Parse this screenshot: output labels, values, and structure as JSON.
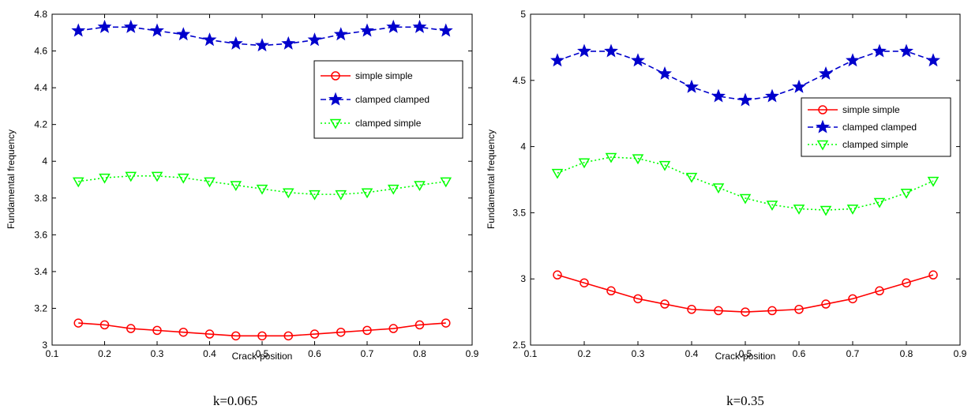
{
  "chart_data": [
    {
      "type": "line",
      "caption": "k=0.065",
      "xlabel": "Crack-position",
      "ylabel": "Fundamental frequency",
      "xlim": [
        0.1,
        0.9
      ],
      "ylim": [
        3,
        4.8
      ],
      "xticks": [
        "0.1",
        "0.2",
        "0.3",
        "0.4",
        "0.5",
        "0.6",
        "0.7",
        "0.8",
        "0.9"
      ],
      "yticks": [
        "3",
        "3.2",
        "3.4",
        "3.6",
        "3.8",
        "4",
        "4.2",
        "4.4",
        "4.6",
        "4.8"
      ],
      "grid": false,
      "legend_position": "right-upper",
      "x": [
        0.15,
        0.2,
        0.25,
        0.3,
        0.35,
        0.4,
        0.45,
        0.5,
        0.55,
        0.6,
        0.65,
        0.7,
        0.75,
        0.8,
        0.85
      ],
      "series": [
        {
          "name": "simple simple",
          "color": "#ff0000",
          "marker": "circle",
          "dash": "solid",
          "values": [
            3.12,
            3.11,
            3.09,
            3.08,
            3.07,
            3.06,
            3.05,
            3.05,
            3.05,
            3.06,
            3.07,
            3.08,
            3.09,
            3.11,
            3.12
          ]
        },
        {
          "name": "clamped clamped",
          "color": "#0000cc",
          "marker": "star",
          "dash": "dashed",
          "values": [
            4.71,
            4.73,
            4.73,
            4.71,
            4.69,
            4.66,
            4.64,
            4.63,
            4.64,
            4.66,
            4.69,
            4.71,
            4.73,
            4.73,
            4.71
          ]
        },
        {
          "name": "clamped simple",
          "color": "#00ff00",
          "marker": "triangle-down",
          "dash": "dotted",
          "values": [
            3.89,
            3.91,
            3.92,
            3.92,
            3.91,
            3.89,
            3.87,
            3.85,
            3.83,
            3.82,
            3.82,
            3.83,
            3.85,
            3.87,
            3.89
          ]
        }
      ]
    },
    {
      "type": "line",
      "caption": "k=0.35",
      "xlabel": "Crack-position",
      "ylabel": "Fundamental frequency",
      "xlim": [
        0.1,
        0.9
      ],
      "ylim": [
        2.5,
        5
      ],
      "xticks": [
        "0.1",
        "0.2",
        "0.3",
        "0.4",
        "0.5",
        "0.6",
        "0.7",
        "0.8",
        "0.9"
      ],
      "yticks": [
        "2.5",
        "3",
        "3.5",
        "4",
        "4.5",
        "5"
      ],
      "grid": false,
      "legend_position": "right-middle",
      "x": [
        0.15,
        0.2,
        0.25,
        0.3,
        0.35,
        0.4,
        0.45,
        0.5,
        0.55,
        0.6,
        0.65,
        0.7,
        0.75,
        0.8,
        0.85
      ],
      "series": [
        {
          "name": "simple simple",
          "color": "#ff0000",
          "marker": "circle",
          "dash": "solid",
          "values": [
            3.03,
            2.97,
            2.91,
            2.85,
            2.81,
            2.77,
            2.76,
            2.75,
            2.76,
            2.77,
            2.81,
            2.85,
            2.91,
            2.97,
            3.03
          ]
        },
        {
          "name": "clamped clamped",
          "color": "#0000cc",
          "marker": "star",
          "dash": "dashed",
          "values": [
            4.65,
            4.72,
            4.72,
            4.65,
            4.55,
            4.45,
            4.38,
            4.35,
            4.38,
            4.45,
            4.55,
            4.65,
            4.72,
            4.72,
            4.65
          ]
        },
        {
          "name": "clamped simple",
          "color": "#00ff00",
          "marker": "triangle-down",
          "dash": "dotted",
          "values": [
            3.8,
            3.88,
            3.92,
            3.91,
            3.86,
            3.77,
            3.69,
            3.61,
            3.56,
            3.53,
            3.52,
            3.53,
            3.58,
            3.65,
            3.74
          ]
        }
      ]
    }
  ]
}
